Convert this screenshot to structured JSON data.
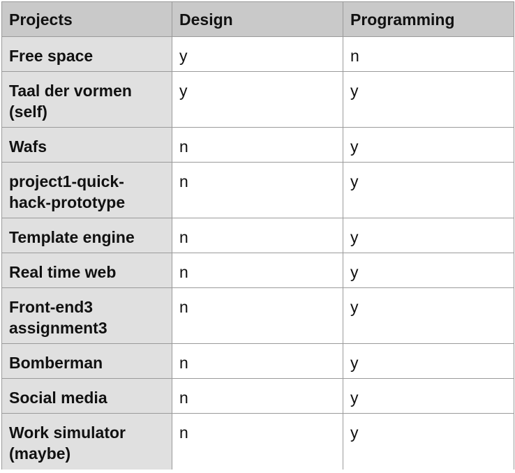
{
  "header": {
    "col_projects": "Projects",
    "col_design": "Design",
    "col_programming": "Programming"
  },
  "rows": [
    {
      "project": "Free space",
      "design": "y",
      "programming": "n"
    },
    {
      "project": "Taal der vormen (self)",
      "design": "y",
      "programming": "y"
    },
    {
      "project": "Wafs",
      "design": "n",
      "programming": "y"
    },
    {
      "project": "project1-quick-hack-prototype",
      "design": "n",
      "programming": "y"
    },
    {
      "project": "Template engine",
      "design": "n",
      "programming": "y"
    },
    {
      "project": "Real time web",
      "design": "n",
      "programming": "y"
    },
    {
      "project": "Front-end3 assignment3",
      "design": "n",
      "programming": "y"
    },
    {
      "project": "Bomberman",
      "design": "n",
      "programming": "y"
    },
    {
      "project": "Social media",
      "design": "n",
      "programming": "y"
    },
    {
      "project": "Work simulator (maybe)",
      "design": "n",
      "programming": "y"
    }
  ]
}
